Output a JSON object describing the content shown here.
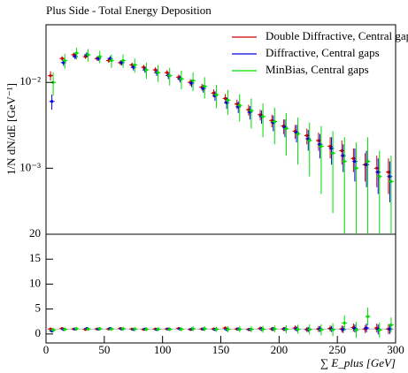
{
  "chart_data": [
    {
      "type": "errorbar",
      "title": "Plus Side - Total Energy Deposition",
      "y_label": "1/N dN/dE [GeV⁻¹]",
      "log_y": true,
      "x": [
        5,
        15,
        25,
        35,
        45,
        55,
        65,
        75,
        85,
        95,
        105,
        115,
        125,
        135,
        145,
        155,
        165,
        175,
        185,
        195,
        205,
        215,
        225,
        235,
        245,
        255,
        265,
        275,
        285,
        295
      ],
      "xlim": [
        0,
        300
      ],
      "ylim": [
        0.00017,
        0.047
      ],
      "yticks": [
        {
          "value": 0.001,
          "label": "10⁻³"
        },
        {
          "value": 0.01,
          "label": "10⁻²"
        }
      ],
      "legend": "top-right",
      "series": [
        {
          "name": "Double Diffractive, Central gaps",
          "color": "#cc0000",
          "values": [
            0.012,
            0.019,
            0.021,
            0.02,
            0.019,
            0.018,
            0.017,
            0.016,
            0.015,
            0.014,
            0.013,
            0.0115,
            0.01,
            0.0088,
            0.0075,
            0.0065,
            0.0056,
            0.0048,
            0.0042,
            0.0036,
            0.0031,
            0.0027,
            0.0024,
            0.0021,
            0.0018,
            0.0016,
            0.0013,
            0.0011,
            0.001,
            0.0009
          ],
          "errors": [
            0.0015,
            0.0012,
            0.0012,
            0.0012,
            0.0011,
            0.0011,
            0.0011,
            0.001,
            0.001,
            0.001,
            0.0009,
            0.0009,
            0.0009,
            0.0008,
            0.0008,
            0.0008,
            0.0007,
            0.0007,
            0.0006,
            0.0006,
            0.0006,
            0.0005,
            0.0005,
            0.0005,
            0.0005,
            0.0005,
            0.0004,
            0.0004,
            0.0004,
            0.0004
          ]
        },
        {
          "name": "Diffractive, Central gaps",
          "color": "#0000dd",
          "values": [
            0.006,
            0.017,
            0.02,
            0.021,
            0.019,
            0.019,
            0.017,
            0.015,
            0.014,
            0.013,
            0.012,
            0.011,
            0.0098,
            0.0085,
            0.007,
            0.0058,
            0.0052,
            0.0045,
            0.004,
            0.0034,
            0.003,
            0.0026,
            0.0022,
            0.0019,
            0.0017,
            0.0014,
            0.0012,
            0.0011,
            0.0009,
            0.0008
          ],
          "errors": [
            0.0012,
            0.0014,
            0.0014,
            0.0014,
            0.0013,
            0.0013,
            0.0012,
            0.0012,
            0.0011,
            0.0011,
            0.0011,
            0.001,
            0.001,
            0.0009,
            0.0009,
            0.0009,
            0.0008,
            0.0008,
            0.0007,
            0.0007,
            0.0007,
            0.0006,
            0.0006,
            0.0006,
            0.0006,
            0.0005,
            0.0005,
            0.0005,
            0.0004,
            0.0004
          ]
        },
        {
          "name": "MinBias, Central gaps",
          "color": "#00dd00",
          "values": [
            0.01,
            0.018,
            0.022,
            0.021,
            0.02,
            0.018,
            0.018,
            0.016,
            0.014,
            0.013,
            0.012,
            0.011,
            0.0105,
            0.009,
            0.0072,
            0.0062,
            0.0054,
            0.0047,
            0.004,
            0.0035,
            0.0029,
            0.0025,
            0.0021,
            0.0018,
            0.0015,
            0.0012,
            0.001,
            0.0012,
            0.0008,
            0.0007
          ],
          "errors": [
            0.003,
            0.0035,
            0.0035,
            0.0035,
            0.0033,
            0.0032,
            0.0032,
            0.003,
            0.003,
            0.0029,
            0.0028,
            0.0027,
            0.0026,
            0.0025,
            0.0022,
            0.002,
            0.0019,
            0.0018,
            0.0017,
            0.0016,
            0.0015,
            0.0014,
            0.0013,
            0.0013,
            0.0012,
            0.0011,
            0.001,
            0.0011,
            0.0008,
            0.0007
          ]
        }
      ]
    },
    {
      "type": "errorbar",
      "x_label": "∑ E_plus [GeV]",
      "log_y": false,
      "x": [
        5,
        15,
        25,
        35,
        45,
        55,
        65,
        75,
        85,
        95,
        105,
        115,
        125,
        135,
        145,
        155,
        165,
        175,
        185,
        195,
        205,
        215,
        225,
        235,
        245,
        255,
        265,
        275,
        285,
        295
      ],
      "xlim": [
        0,
        300
      ],
      "xticks": [
        0,
        50,
        100,
        150,
        200,
        250,
        300
      ],
      "ylim": [
        -1.8,
        20
      ],
      "yticks": [
        0,
        5,
        10,
        15,
        20
      ],
      "series": [
        {
          "name": "Double Diffractive, Central gaps",
          "color": "#cc0000",
          "values": [
            1,
            1.1,
            1,
            0.9,
            1,
            1,
            1.1,
            1,
            0.9,
            1,
            1,
            1.1,
            0.9,
            1,
            1,
            1.2,
            1,
            0.9,
            1.1,
            1,
            1,
            1.2,
            0.9,
            1,
            1.1,
            1,
            1.3,
            1,
            1.2,
            1
          ],
          "errors": [
            0.3,
            0.2,
            0.2,
            0.2,
            0.2,
            0.2,
            0.2,
            0.2,
            0.2,
            0.2,
            0.2,
            0.2,
            0.2,
            0.3,
            0.3,
            0.3,
            0.3,
            0.3,
            0.4,
            0.4,
            0.4,
            0.5,
            0.5,
            0.6,
            0.6,
            0.7,
            0.8,
            0.8,
            0.9,
            1
          ]
        },
        {
          "name": "Diffractive, Central gaps",
          "color": "#0000dd",
          "values": [
            0.6,
            0.9,
            1,
            1.1,
            1,
            1.1,
            1,
            0.9,
            1,
            0.9,
            1,
            1,
            1,
            1,
            0.9,
            0.9,
            1,
            0.9,
            1,
            1,
            1,
            1,
            0.9,
            1,
            1,
            0.9,
            1.1,
            1.2,
            0.9,
            1
          ],
          "errors": [
            0.3,
            0.2,
            0.2,
            0.2,
            0.2,
            0.2,
            0.2,
            0.2,
            0.2,
            0.2,
            0.2,
            0.2,
            0.3,
            0.3,
            0.3,
            0.3,
            0.3,
            0.3,
            0.4,
            0.4,
            0.4,
            0.5,
            0.5,
            0.6,
            0.6,
            0.7,
            0.8,
            0.9,
            1,
            1
          ]
        },
        {
          "name": "MinBias, Central gaps",
          "color": "#00dd00",
          "values": [
            0.8,
            0.95,
            1.05,
            1,
            1.05,
            1,
            1.05,
            1,
            0.95,
            0.95,
            0.95,
            0.95,
            1.05,
            1.05,
            0.95,
            0.95,
            0.95,
            0.95,
            0.95,
            1,
            0.95,
            0.95,
            0.9,
            0.85,
            0.85,
            2.2,
            0.8,
            3.5,
            0.8,
            1.8
          ],
          "errors": [
            0.5,
            0.4,
            0.4,
            0.4,
            0.4,
            0.4,
            0.4,
            0.4,
            0.4,
            0.4,
            0.4,
            0.4,
            0.5,
            0.5,
            0.5,
            0.6,
            0.6,
            0.6,
            0.7,
            0.7,
            0.8,
            0.9,
            1,
            1.1,
            1.3,
            1.5,
            1.6,
            1.8,
            1.5,
            1.5
          ]
        }
      ]
    }
  ]
}
